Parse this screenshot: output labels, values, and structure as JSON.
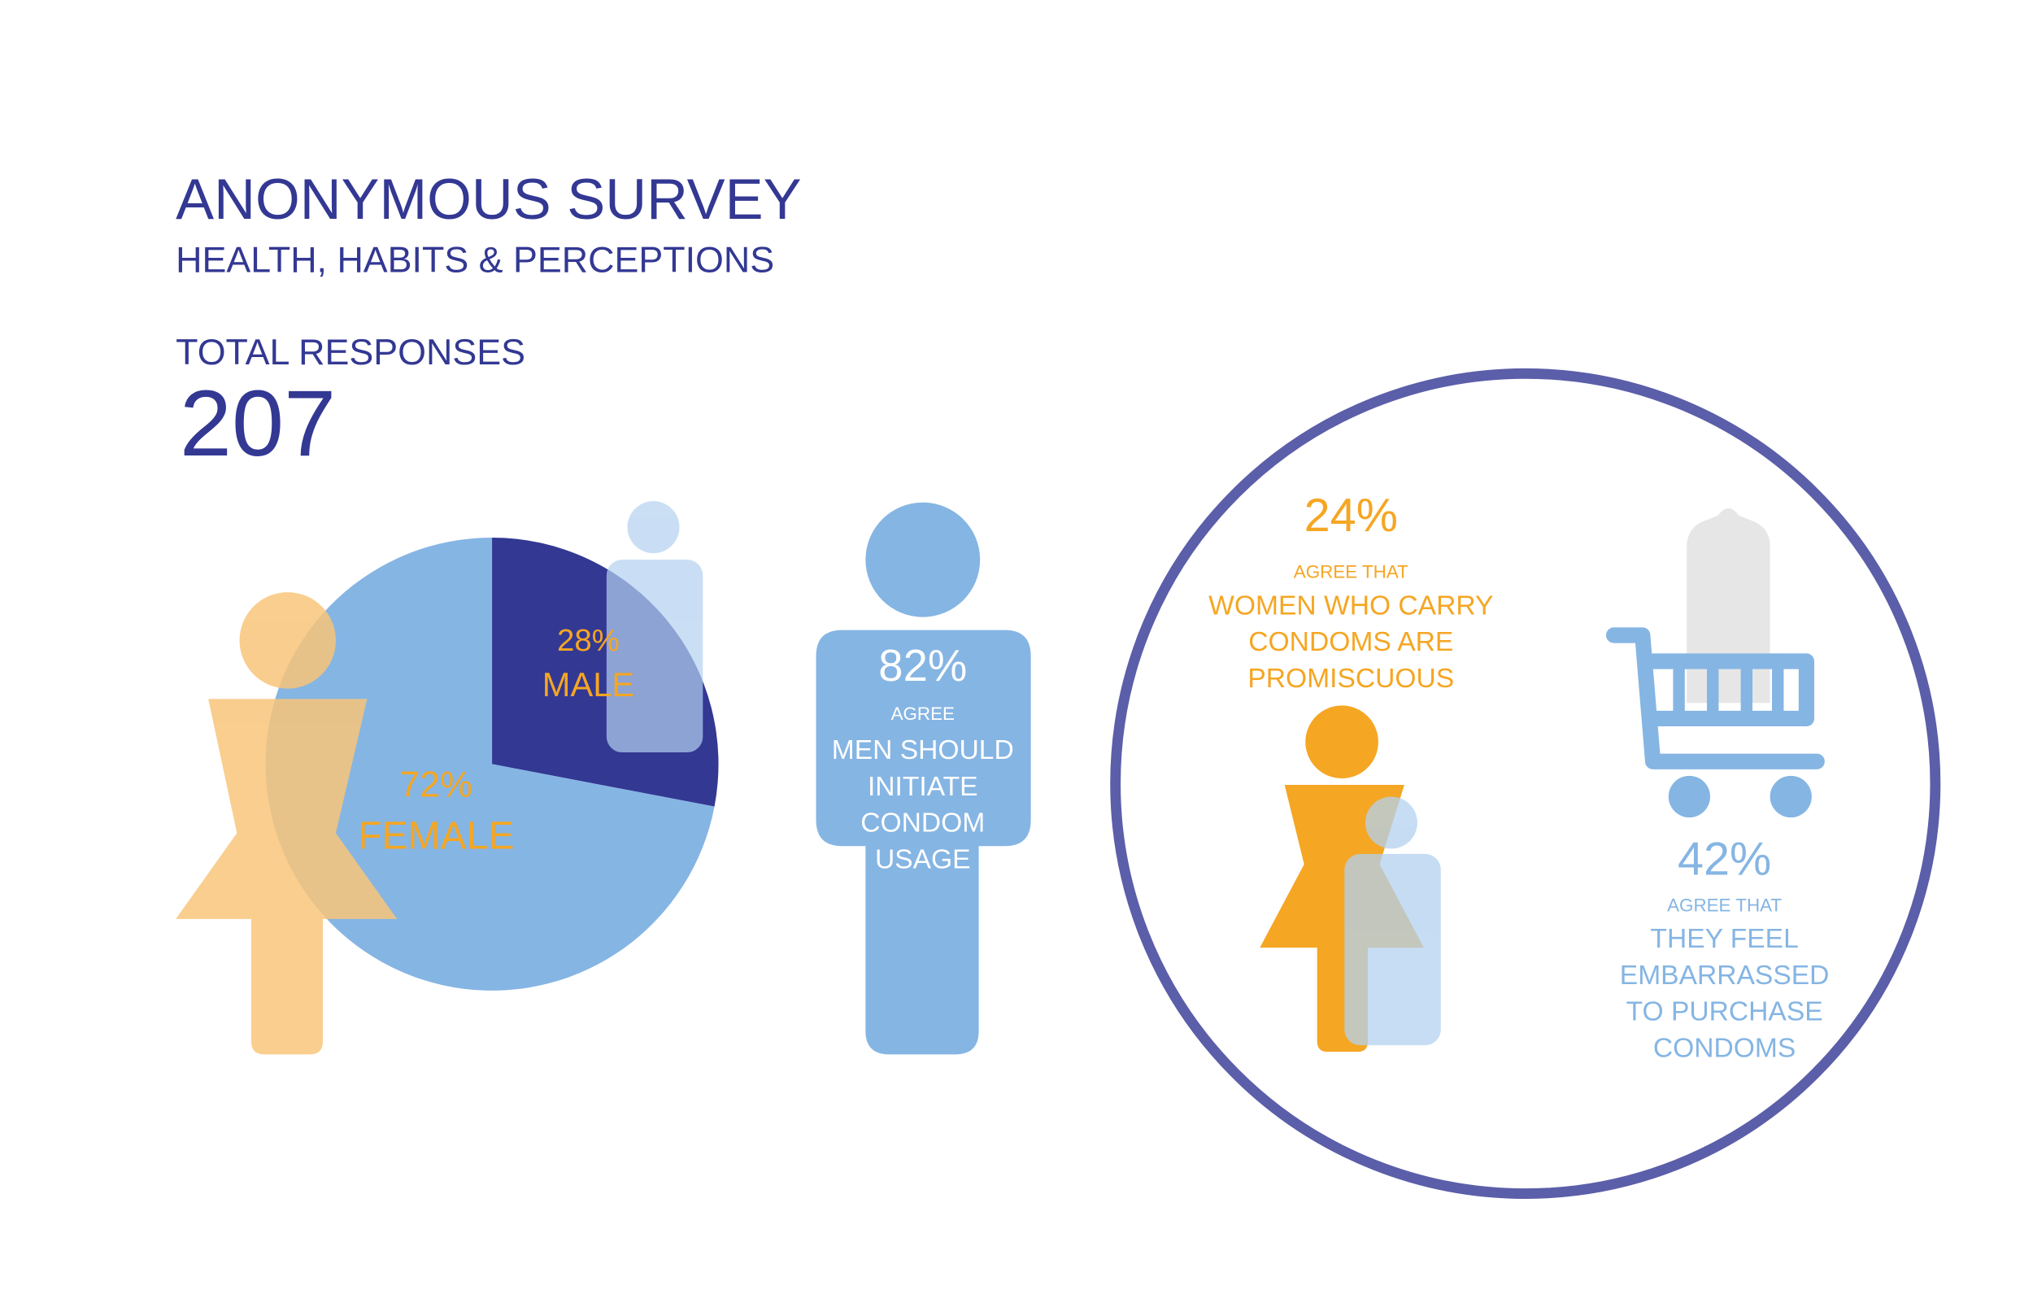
{
  "header": {
    "title": "ANONYMOUS SURVEY",
    "subtitle": "HEALTH, HABITS & PERCEPTIONS"
  },
  "total": {
    "label": "TOTAL RESPONSES",
    "value": 207
  },
  "chart_data": {
    "type": "pie",
    "categories": [
      "MALE",
      "FEMALE"
    ],
    "values": [
      28,
      72
    ],
    "value_labels": [
      "28%",
      "72%"
    ],
    "colors": [
      "#333893",
      "#85b5e3"
    ]
  },
  "stats": [
    {
      "value": "82%",
      "lead": "AGREE",
      "lines": [
        "MEN SHOULD",
        "INITIATE",
        "CONDOM",
        "USAGE"
      ]
    },
    {
      "value": "24%",
      "lead": "AGREE THAT",
      "lines": [
        "WOMEN WHO CARRY",
        "CONDOMS ARE",
        "PROMISCUOUS"
      ]
    },
    {
      "value": "42%",
      "lead": "AGREE THAT",
      "lines": [
        "THEY FEEL",
        "EMBARRASSED",
        "TO PURCHASE",
        "CONDOMS"
      ]
    }
  ]
}
